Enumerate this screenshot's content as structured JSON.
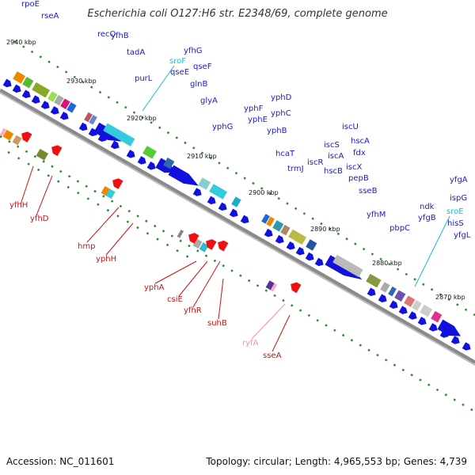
{
  "header": {
    "title": "Escherichia coli O127:H6 str. E2348/69, complete genome"
  },
  "footer": {
    "accession": "Accession: NC_011601",
    "topology": "Topology: circular; Length: 4,965,553 bp; Genes: 4,739"
  },
  "colors": {
    "backbone": "#888888",
    "forward_gene_label": "#1a1acc",
    "reverse_gene_label": "#cc1111",
    "forward_arrow": "#1111dd",
    "reverse_arrow": "#ee1111",
    "rna_label": "#22b8dd",
    "rna_label_reverse": "#ff88bb",
    "dot_track": "#2a8a2a"
  },
  "axis_ticks": [
    "2940 kbp",
    "2930 kbp",
    "2920 kbp",
    "2910 kbp",
    "2900 kbp",
    "2890 kbp",
    "2880 kbp",
    "2870 kbp"
  ],
  "forward_labels": [
    "rpoE",
    "rseA",
    "recO",
    "yfhB",
    "tadA",
    "purL",
    "sroF",
    "yfhG",
    "qseE",
    "qseF",
    "glnB",
    "glyA",
    "yphG",
    "yphF",
    "yphE",
    "yphD",
    "yphC",
    "yphB",
    "hcaT",
    "trmJ",
    "iscS",
    "iscR",
    "iscA",
    "iscU",
    "hscB",
    "hscA",
    "fdx",
    "iscX",
    "pepB",
    "sseB",
    "yfhM",
    "pbpC",
    "yfgB",
    "ndk",
    "yfgA",
    "ispG",
    "sroE",
    "hisS",
    "yfgL"
  ],
  "reverse_labels": [
    "yfhH",
    "yfhD",
    "hmp",
    "yphH",
    "yphA",
    "csiE",
    "yfhR",
    "suhB",
    "ryfA",
    "sseA"
  ]
}
